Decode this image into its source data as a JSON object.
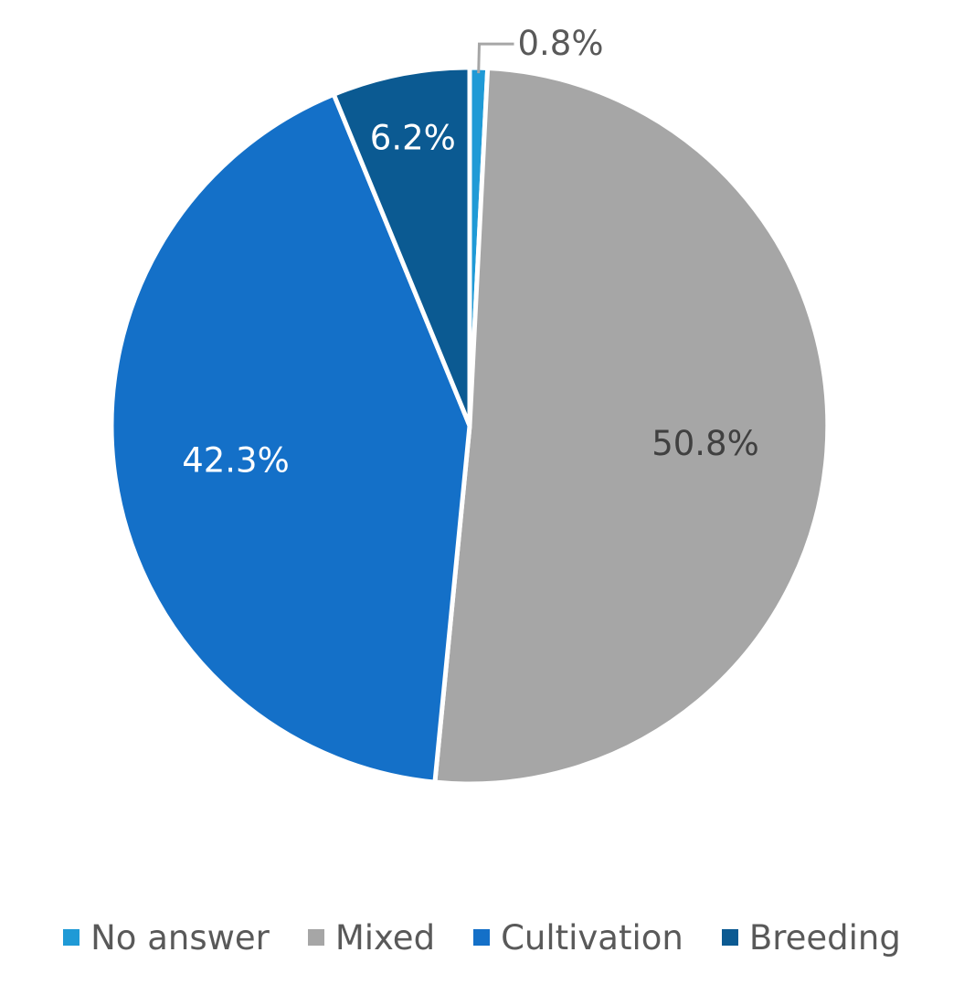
{
  "chart_data": {
    "type": "pie",
    "title": "",
    "legend_position": "bottom",
    "slices": [
      {
        "label": "No answer",
        "value": 0.8,
        "display": "0.8%",
        "color": "#1f9ad6",
        "label_color": "#595959",
        "label_placement": "outside"
      },
      {
        "label": "Mixed",
        "value": 50.8,
        "display": "50.8%",
        "color": "#a6a6a6",
        "label_color": "#404040",
        "label_placement": "inside"
      },
      {
        "label": "Cultivation",
        "value": 42.3,
        "display": "42.3%",
        "color": "#1470c8",
        "label_color": "#ffffff",
        "label_placement": "inside"
      },
      {
        "label": "Breeding",
        "value": 6.2,
        "display": "6.2%",
        "color": "#0b5a92",
        "label_color": "#ffffff",
        "label_placement": "inside"
      }
    ]
  }
}
